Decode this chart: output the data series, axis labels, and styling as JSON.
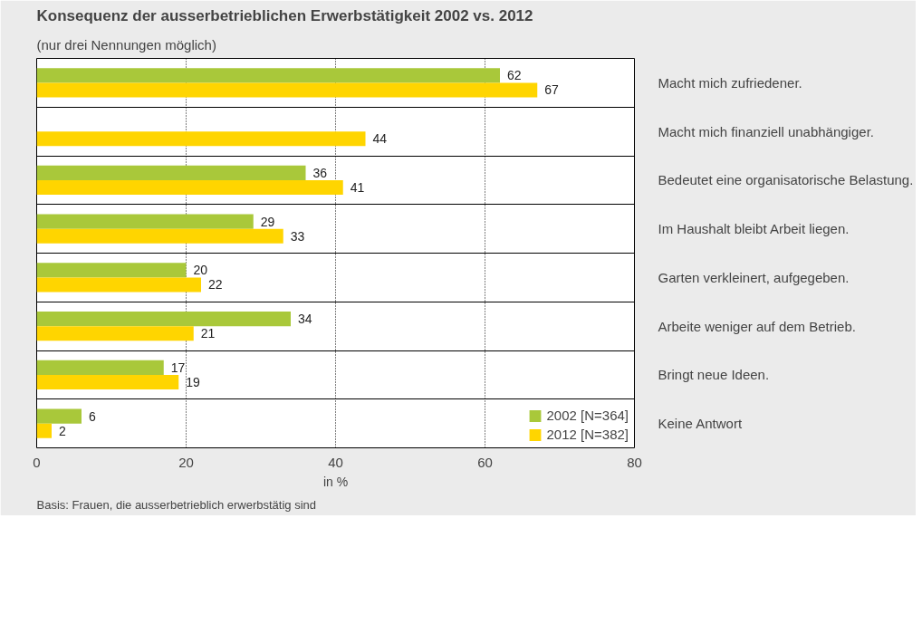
{
  "chart_data": {
    "type": "bar",
    "orientation": "horizontal",
    "title": "Konsequenz der ausserbetrieblichen Erwerbstätigkeit 2002 vs. 2012",
    "subtitle": "(nur drei Nennungen möglich)",
    "xlabel": "in %",
    "categories": [
      "Macht mich zufriedener.",
      "Macht mich finanziell unabhängiger.",
      "Bedeutet eine organisatorische Belastung.",
      "Im Haushalt bleibt Arbeit liegen.",
      "Garten verkleinert, aufgegeben.",
      "Arbeite weniger auf dem Betrieb.",
      "Bringt neue Ideen.",
      "Keine Antwort"
    ],
    "series": [
      {
        "name": "2002 [N=364]",
        "color": "#a9c83a",
        "values": [
          62,
          null,
          36,
          29,
          20,
          34,
          17,
          6
        ]
      },
      {
        "name": "2012 [N=382]",
        "color": "#ffd500",
        "values": [
          67,
          44,
          41,
          33,
          22,
          21,
          19,
          2
        ]
      }
    ],
    "xlim": [
      0,
      80
    ],
    "xticks": [
      0,
      20,
      40,
      60,
      80
    ],
    "grid": "x",
    "legend": "bottom right",
    "data_labels": true,
    "annotations": [
      "Basis: Frauen, die ausserbetrieblich erwerbstätig sind"
    ]
  }
}
